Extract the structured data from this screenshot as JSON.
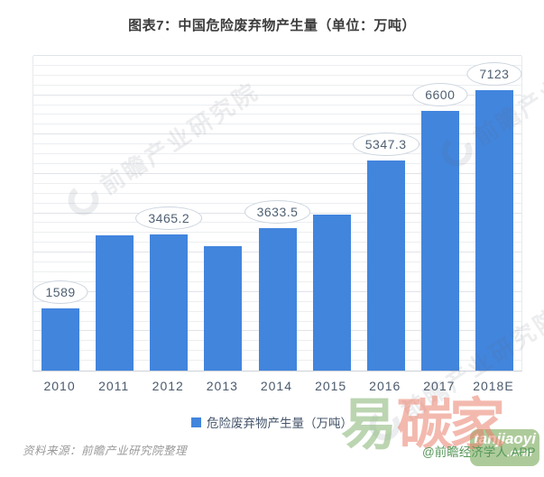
{
  "title": "图表7：中国危险废弃物产生量（单位：万吨）",
  "chart_data": {
    "type": "bar",
    "title": "图表7：中国危险废弃物产生量（单位：万吨）",
    "categories": [
      "2010",
      "2011",
      "2012",
      "2013",
      "2014",
      "2015",
      "2016",
      "2017",
      "2018E"
    ],
    "values": [
      1589,
      3431.2,
      3465.2,
      3157,
      3633.5,
      3976.1,
      5347.3,
      6600,
      7123
    ],
    "data_labels": [
      "1589",
      null,
      "3465.2",
      null,
      "3633.5",
      null,
      "5347.3",
      "6600",
      "7123"
    ],
    "legend": "危险废弃物产生量（万吨）",
    "legend_position": "bottom-center",
    "xlabel": "",
    "ylabel": "",
    "ylim": [
      0,
      8000
    ],
    "grid_step": 250,
    "grid_major_step": 1000,
    "grid": "on",
    "series_color": "#4285dd"
  },
  "footer": {
    "source": "资料来源：前瞻产业研究院整理",
    "credit": "@前瞻经济学人 APP"
  },
  "watermarks": {
    "brand_text": "前瞻产业研究院",
    "yitanjia": {
      "char_green": "易",
      "chars_salmon": "碳家",
      "box_line1": "tanjiaoyi",
      "box_line2": ".com"
    }
  },
  "colors": {
    "bar": "#4285dd",
    "axis_text": "#4a5a6c",
    "bubble_text": "#4f6072",
    "title_text": "#3c3c3c",
    "source_text": "#9a9a9a",
    "credit_green": "#56985a",
    "watermark_salmon": "#e9806c",
    "watermark_green": "#96be87"
  }
}
